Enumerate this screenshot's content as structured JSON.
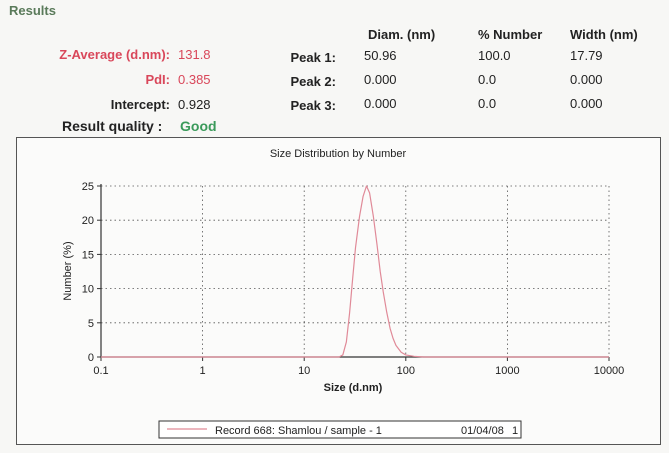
{
  "header": {
    "title": "Results"
  },
  "summary": {
    "z_average_label": "Z-Average (d.nm):",
    "z_average_value": "131.8",
    "pdi_label": "PdI:",
    "pdi_value": "0.385",
    "intercept_label": "Intercept:",
    "intercept_value": "0.928",
    "quality_label": "Result quality :",
    "quality_value": "Good"
  },
  "peaks_table": {
    "columns": [
      "Diam. (nm)",
      "% Number",
      "Width (nm)"
    ],
    "rows": [
      {
        "label": "Peak 1:",
        "values": [
          "50.96",
          "100.0",
          "17.79"
        ]
      },
      {
        "label": "Peak 2:",
        "values": [
          "0.000",
          "0.0",
          "0.000"
        ]
      },
      {
        "label": "Peak 3:",
        "values": [
          "0.000",
          "0.0",
          "0.000"
        ]
      }
    ]
  },
  "colors": {
    "accent_red": "#d9475a",
    "good_green": "#3a9a5a",
    "series": "#e08a98"
  },
  "chart_data": {
    "type": "line",
    "title": "Size Distribution by Number",
    "xlabel": "Size (d.nm)",
    "ylabel": "Number (%)",
    "xscale": "log",
    "xlim": [
      0.1,
      10000
    ],
    "ylim": [
      0,
      25
    ],
    "xticks": [
      "0.1",
      "1",
      "10",
      "100",
      "1000",
      "10000"
    ],
    "yticks": [
      "0",
      "5",
      "10",
      "15",
      "20",
      "25"
    ],
    "grid": true,
    "legend_position": "bottom-center",
    "series": [
      {
        "name": "Record 668: Shamlou / sample - 1",
        "date": "01/04/08",
        "record_index": "1",
        "x": [
          0.1,
          20,
          22,
          24,
          26,
          28,
          30,
          32,
          35,
          38,
          41,
          44,
          48,
          52,
          56,
          60,
          65,
          70,
          75,
          80,
          90,
          100,
          120,
          150,
          200,
          1000,
          10000
        ],
        "y": [
          0,
          0,
          0,
          0.3,
          2.2,
          6.5,
          11.5,
          16,
          20.5,
          23.5,
          25,
          24,
          20.5,
          16.5,
          12.5,
          9.5,
          6.5,
          4.2,
          2.7,
          1.7,
          0.7,
          0.3,
          0.1,
          0,
          0,
          0,
          0
        ]
      }
    ]
  }
}
